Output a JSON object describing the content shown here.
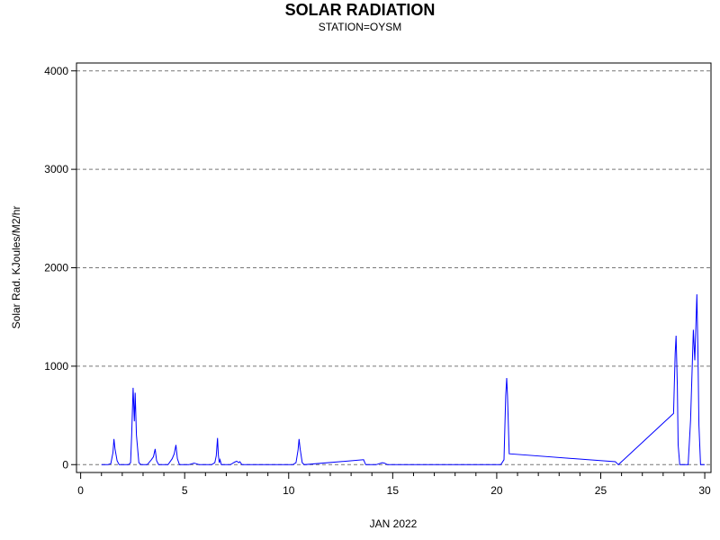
{
  "header": {
    "title": "SOLAR RADIATION",
    "subtitle": "STATION=OYSM"
  },
  "chart_data": {
    "type": "line",
    "title": "SOLAR RADIATION",
    "subtitle": "STATION=OYSM",
    "xlabel": "JAN 2022",
    "ylabel": "Solar Rad. KJoules/M2/hr",
    "xlim": [
      -0.2,
      30.3
    ],
    "ylim": [
      -80,
      4080
    ],
    "x_ticks": [
      0,
      5,
      10,
      15,
      20,
      25,
      30
    ],
    "y_ticks": [
      0,
      1000,
      2000,
      3000,
      4000
    ],
    "grid": "horizontal-dashed",
    "line_color": "#0000ff",
    "series": [
      {
        "points": [
          [
            1.0,
            0
          ],
          [
            1.3,
            0
          ],
          [
            1.45,
            10
          ],
          [
            1.55,
            120
          ],
          [
            1.6,
            260
          ],
          [
            1.65,
            160
          ],
          [
            1.75,
            40
          ],
          [
            1.85,
            0
          ],
          [
            2.3,
            0
          ],
          [
            2.4,
            20
          ],
          [
            2.45,
            300
          ],
          [
            2.52,
            780
          ],
          [
            2.58,
            440
          ],
          [
            2.62,
            730
          ],
          [
            2.68,
            300
          ],
          [
            2.8,
            20
          ],
          [
            2.9,
            0
          ],
          [
            3.2,
            0
          ],
          [
            3.4,
            50
          ],
          [
            3.5,
            80
          ],
          [
            3.58,
            160
          ],
          [
            3.65,
            40
          ],
          [
            3.75,
            0
          ],
          [
            4.2,
            0
          ],
          [
            4.4,
            60
          ],
          [
            4.5,
            110
          ],
          [
            4.58,
            200
          ],
          [
            4.65,
            60
          ],
          [
            4.75,
            0
          ],
          [
            5.2,
            0
          ],
          [
            5.45,
            15
          ],
          [
            5.55,
            10
          ],
          [
            5.7,
            0
          ],
          [
            6.3,
            0
          ],
          [
            6.45,
            20
          ],
          [
            6.52,
            90
          ],
          [
            6.58,
            270
          ],
          [
            6.62,
            100
          ],
          [
            6.66,
            20
          ],
          [
            6.7,
            50
          ],
          [
            6.76,
            0
          ],
          [
            7.2,
            0
          ],
          [
            7.4,
            25
          ],
          [
            7.5,
            35
          ],
          [
            7.6,
            20
          ],
          [
            7.65,
            30
          ],
          [
            7.75,
            0
          ],
          [
            10.2,
            0
          ],
          [
            10.35,
            20
          ],
          [
            10.45,
            150
          ],
          [
            10.5,
            260
          ],
          [
            10.55,
            160
          ],
          [
            10.65,
            20
          ],
          [
            10.75,
            0
          ],
          [
            13.6,
            50
          ],
          [
            13.7,
            0
          ],
          [
            14.2,
            0
          ],
          [
            14.5,
            20
          ],
          [
            14.6,
            15
          ],
          [
            14.75,
            0
          ],
          [
            20.2,
            0
          ],
          [
            20.35,
            50
          ],
          [
            20.43,
            700
          ],
          [
            20.48,
            880
          ],
          [
            20.52,
            700
          ],
          [
            20.6,
            110
          ],
          [
            25.7,
            30
          ],
          [
            25.85,
            0
          ],
          [
            28.5,
            520
          ],
          [
            28.58,
            1130
          ],
          [
            28.62,
            1310
          ],
          [
            28.68,
            800
          ],
          [
            28.72,
            200
          ],
          [
            28.8,
            0
          ],
          [
            29.2,
            0
          ],
          [
            29.32,
            450
          ],
          [
            29.45,
            1370
          ],
          [
            29.52,
            1060
          ],
          [
            29.57,
            1380
          ],
          [
            29.62,
            1730
          ],
          [
            29.67,
            1200
          ],
          [
            29.72,
            400
          ],
          [
            29.8,
            0
          ],
          [
            30.0,
            0
          ]
        ]
      }
    ]
  }
}
